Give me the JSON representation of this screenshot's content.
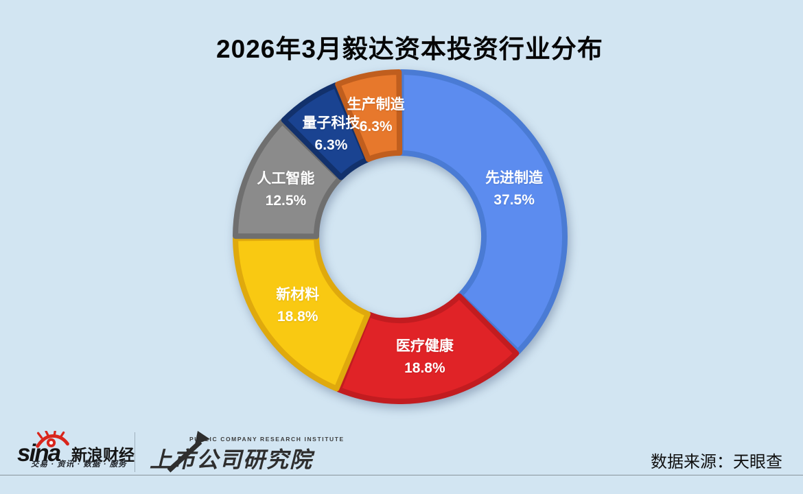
{
  "page": {
    "background": "#D2E5F2"
  },
  "chart_data": {
    "type": "pie",
    "subtype": "donut",
    "title": "2026年3月毅达资本投资行业分布",
    "categories": [
      "先进制造",
      "医疗健康",
      "新材料",
      "人工智能",
      "量子科技",
      "生产制造"
    ],
    "values": [
      37.5,
      18.8,
      18.8,
      12.5,
      6.3,
      6.3
    ],
    "value_labels": [
      "37.5%",
      "18.8%",
      "18.8%",
      "12.5%",
      "6.3%",
      "6.3%"
    ],
    "colors": [
      "#5C8CEF",
      "#E02327",
      "#F9C912",
      "#8B8B8B",
      "#1A4391",
      "#E7782C"
    ],
    "border_colors": [
      "#4A7BD4",
      "#C21C20",
      "#DFA90D",
      "#6F6F6F",
      "#12316C",
      "#C05E1E"
    ],
    "label_color": "#FFFFFF",
    "start_angle_deg": 0,
    "clockwise": true,
    "legend": "none",
    "label_position": "inside"
  },
  "footer": {
    "sina": {
      "brand": "sina",
      "name": "新浪财经",
      "tagline": "交易 · 资讯 · 数据 · 服务"
    },
    "institute": {
      "en": "PUBLIC COMPANY RESEARCH INSTITUTE",
      "zh": "上市公司研究院"
    },
    "source": "数据来源：天眼查"
  }
}
